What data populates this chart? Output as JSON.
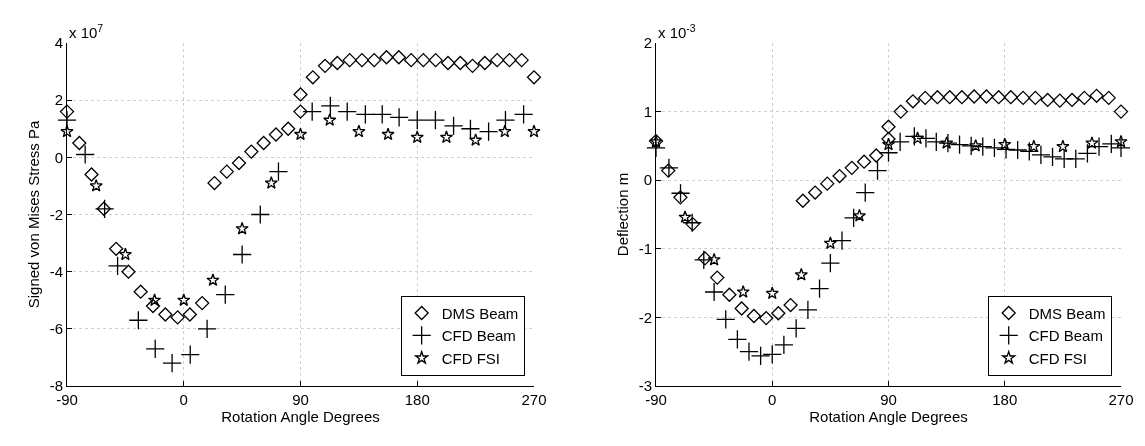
{
  "chart_data": [
    {
      "type": "scatter",
      "xlabel": "Rotation Angle Degrees",
      "ylabel": "Signed von Mises Stress Pa",
      "annotations": [
        "x 10$^{7}$"
      ],
      "xlim": [
        -90,
        270
      ],
      "xticks": [
        -90,
        0,
        90,
        180,
        270
      ],
      "ylim": [
        -8,
        4
      ],
      "yticks": [
        -8,
        -6,
        -4,
        -2,
        0,
        2,
        4
      ],
      "grid": true,
      "legend": "bottom right",
      "series": [
        {
          "name": "DMS Beam",
          "color": "#000000",
          "marker": "diamond",
          "x": [
            -90,
            -80.5,
            -71.1,
            -61.6,
            -52.1,
            -42.6,
            -33.2,
            -23.7,
            -14.2,
            -4.7,
            4.7,
            14.2,
            23.7,
            33.2,
            42.6,
            52.1,
            61.6,
            71.1,
            80.5,
            90,
            90,
            99.5,
            108.9,
            118.4,
            127.9,
            137.4,
            146.8,
            156.3,
            165.8,
            175.3,
            184.7,
            194.2,
            203.7,
            213.2,
            222.6,
            232.1,
            241.6,
            251.1,
            260.5,
            270
          ],
          "values": [
            1.6,
            0.5,
            -0.6,
            -1.8,
            -3.2,
            -4.0,
            -4.7,
            -5.2,
            -5.5,
            -5.6,
            -5.5,
            -5.1,
            -0.9,
            -0.5,
            -0.2,
            0.2,
            0.5,
            0.8,
            1.0,
            2.2,
            1.6,
            2.8,
            3.2,
            3.3,
            3.4,
            3.4,
            3.4,
            3.5,
            3.5,
            3.4,
            3.4,
            3.4,
            3.3,
            3.3,
            3.2,
            3.3,
            3.4,
            3.4,
            3.4,
            2.8
          ]
        },
        {
          "name": "CFD Beam",
          "color": "#000000",
          "marker": "cross",
          "x": [
            -90,
            -76,
            -61,
            -51,
            -35,
            -22,
            -9,
            5,
            18,
            32,
            45,
            59,
            73,
            99,
            113,
            126,
            140,
            153,
            166,
            180,
            194,
            208,
            221,
            235,
            248,
            262
          ],
          "values": [
            1.3,
            0.1,
            -1.8,
            -3.8,
            -5.7,
            -6.7,
            -7.2,
            -6.9,
            -6.0,
            -4.8,
            -3.4,
            -2.0,
            -0.5,
            1.6,
            1.8,
            1.6,
            1.5,
            1.5,
            1.4,
            1.3,
            1.3,
            1.1,
            1.0,
            0.9,
            1.3,
            1.5
          ]
        },
        {
          "name": "CFD FSI",
          "color": "#000000",
          "marker": "star",
          "x": [
            -90,
            -67.5,
            -45,
            -22.5,
            0,
            22.5,
            45,
            67.5,
            90,
            112.5,
            135,
            157.5,
            180,
            202.5,
            225,
            247.5,
            270
          ],
          "values": [
            0.9,
            -1.0,
            -3.4,
            -5.0,
            -5.0,
            -4.3,
            -2.5,
            -0.9,
            0.8,
            1.3,
            0.9,
            0.8,
            0.7,
            0.7,
            0.6,
            0.9,
            0.9
          ]
        }
      ]
    },
    {
      "type": "scatter",
      "xlabel": "Rotation Angle Degrees",
      "ylabel": "Deflection m",
      "annotations": [
        "x 10$^{-3}$"
      ],
      "xlim": [
        -90,
        270
      ],
      "xticks": [
        -90,
        0,
        90,
        180,
        270
      ],
      "ylim": [
        -3,
        2
      ],
      "yticks": [
        -3,
        -2,
        -1,
        0,
        1,
        2
      ],
      "grid": true,
      "legend": "bottom right",
      "series": [
        {
          "name": "DMS Beam",
          "color": "#000000",
          "marker": "diamond",
          "x": [
            -90,
            -80.5,
            -71.1,
            -61.6,
            -52.1,
            -42.6,
            -33.2,
            -23.7,
            -14.2,
            -4.7,
            4.7,
            14.2,
            23.7,
            33.2,
            42.6,
            52.1,
            61.6,
            71.1,
            80.5,
            90,
            90,
            99.5,
            108.9,
            118.4,
            127.9,
            137.4,
            146.8,
            156.3,
            165.8,
            175.3,
            184.7,
            194.2,
            203.7,
            213.2,
            222.6,
            232.1,
            241.6,
            251.1,
            260.5,
            270
          ],
          "values": [
            0.57,
            0.14,
            -0.25,
            -0.64,
            -1.14,
            -1.42,
            -1.67,
            -1.87,
            -1.98,
            -2.01,
            -1.94,
            -1.82,
            -0.3,
            -0.18,
            -0.05,
            0.06,
            0.18,
            0.27,
            0.36,
            0.78,
            0.6,
            1.0,
            1.15,
            1.2,
            1.21,
            1.21,
            1.21,
            1.22,
            1.22,
            1.21,
            1.21,
            1.2,
            1.2,
            1.17,
            1.16,
            1.17,
            1.2,
            1.23,
            1.2,
            1.0
          ]
        },
        {
          "name": "CFD Beam",
          "color": "#000000",
          "marker": "cross",
          "x": [
            -90,
            -80,
            -71,
            -62,
            -53,
            -45,
            -36,
            -27,
            -18,
            -9,
            0,
            9,
            18.5,
            27.6,
            36.6,
            45,
            54,
            63,
            72,
            81.5,
            90,
            99,
            110,
            119,
            127,
            136,
            145,
            154,
            163,
            172,
            181,
            190,
            199,
            208,
            217,
            226,
            235,
            244,
            253,
            262.5,
            270
          ],
          "values": [
            0.47,
            0.18,
            -0.19,
            -0.62,
            -1.16,
            -1.63,
            -2.03,
            -2.32,
            -2.5,
            -2.56,
            -2.54,
            -2.4,
            -2.16,
            -1.89,
            -1.58,
            -1.21,
            -0.88,
            -0.55,
            -0.18,
            0.14,
            0.4,
            0.56,
            0.64,
            0.61,
            0.56,
            0.54,
            0.52,
            0.5,
            0.49,
            0.47,
            0.45,
            0.44,
            0.42,
            0.37,
            0.34,
            0.31,
            0.31,
            0.39,
            0.49,
            0.53,
            0.47
          ]
        },
        {
          "name": "CFD FSI",
          "color": "#000000",
          "marker": "star",
          "x": [
            -90,
            -67.5,
            -45,
            -22.5,
            0,
            22.5,
            45,
            67.5,
            90,
            112.5,
            135,
            157.5,
            180,
            202.5,
            225,
            247.5,
            270
          ],
          "values": [
            0.56,
            -0.54,
            -1.16,
            -1.63,
            -1.65,
            -1.38,
            -0.92,
            -0.52,
            0.52,
            0.61,
            0.54,
            0.5,
            0.52,
            0.49,
            0.49,
            0.54,
            0.56
          ]
        }
      ]
    }
  ]
}
